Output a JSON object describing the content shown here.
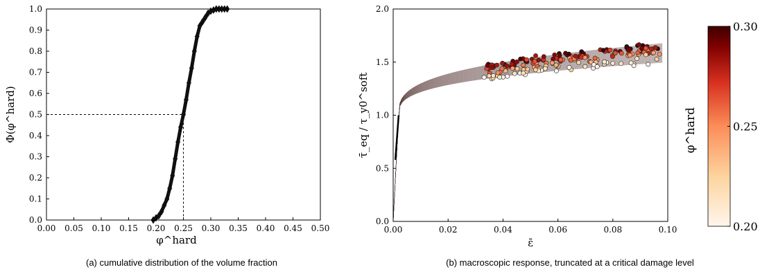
{
  "figure": {
    "caption_a": "(a) cumulative distribution of the volume fraction",
    "caption_b": "(b) macroscopic response, truncated at a critical damage level"
  },
  "chart_data": [
    {
      "type": "line",
      "panel": "a",
      "title": "",
      "xlabel": "φ^hard",
      "ylabel": "Φ(φ^hard)",
      "xlim": [
        0.0,
        0.5
      ],
      "ylim": [
        0.0,
        1.0
      ],
      "xticks": [
        "0.00",
        "0.05",
        "0.10",
        "0.15",
        "0.20",
        "0.25",
        "0.30",
        "0.35",
        "0.40",
        "0.45",
        "0.50"
      ],
      "yticks": [
        "0.0",
        "0.1",
        "0.2",
        "0.3",
        "0.4",
        "0.5",
        "0.6",
        "0.7",
        "0.8",
        "0.9",
        "1.0"
      ],
      "grid": false,
      "reference_lines": {
        "x": 0.25,
        "y": 0.5,
        "style": "dashed"
      },
      "series": [
        {
          "marker": "diamond",
          "color": "#000000",
          "x": [
            0.195,
            0.2,
            0.205,
            0.21,
            0.215,
            0.22,
            0.225,
            0.23,
            0.235,
            0.24,
            0.245,
            0.25,
            0.255,
            0.26,
            0.265,
            0.27,
            0.275,
            0.28,
            0.285,
            0.29,
            0.295,
            0.3,
            0.305,
            0.31,
            0.315,
            0.32,
            0.325,
            0.33
          ],
          "y": [
            0.0,
            0.01,
            0.02,
            0.04,
            0.07,
            0.1,
            0.15,
            0.21,
            0.29,
            0.37,
            0.44,
            0.5,
            0.57,
            0.65,
            0.72,
            0.8,
            0.87,
            0.92,
            0.94,
            0.96,
            0.98,
            0.99,
            0.995,
            1.0,
            1.0,
            1.0,
            1.0,
            1.0
          ]
        }
      ]
    },
    {
      "type": "line",
      "panel": "b",
      "title": "",
      "xlabel": "ε̄",
      "ylabel": "τ̄_eq / τ_y0^soft",
      "xlim": [
        0.0,
        0.1
      ],
      "ylim": [
        0.0,
        2.0
      ],
      "xticks": [
        "0.00",
        "0.02",
        "0.04",
        "0.06",
        "0.08",
        "0.10"
      ],
      "yticks": [
        "0.0",
        "0.5",
        "1.0",
        "1.5",
        "2.0"
      ],
      "grid": false,
      "curves": {
        "count": 40,
        "yield_strain": 0.002,
        "yield_stress": 1.0,
        "strain_range": [
          0.0,
          0.098
        ],
        "stress_at_0_1_range": [
          1.5,
          1.68
        ],
        "line_color": "#5a3b38"
      },
      "end_points": {
        "marker": "circle",
        "color_by": "φ^hard",
        "count": 180
      },
      "colorbar": {
        "label": "φ^hard",
        "min": 0.2,
        "max": 0.3,
        "ticks": [
          "0.20",
          "0.25",
          "0.30"
        ],
        "colors": [
          "#fff5ec",
          "#fdd49e",
          "#fc8d59",
          "#d7301f",
          "#7f0000",
          "#3d0000"
        ]
      }
    }
  ]
}
